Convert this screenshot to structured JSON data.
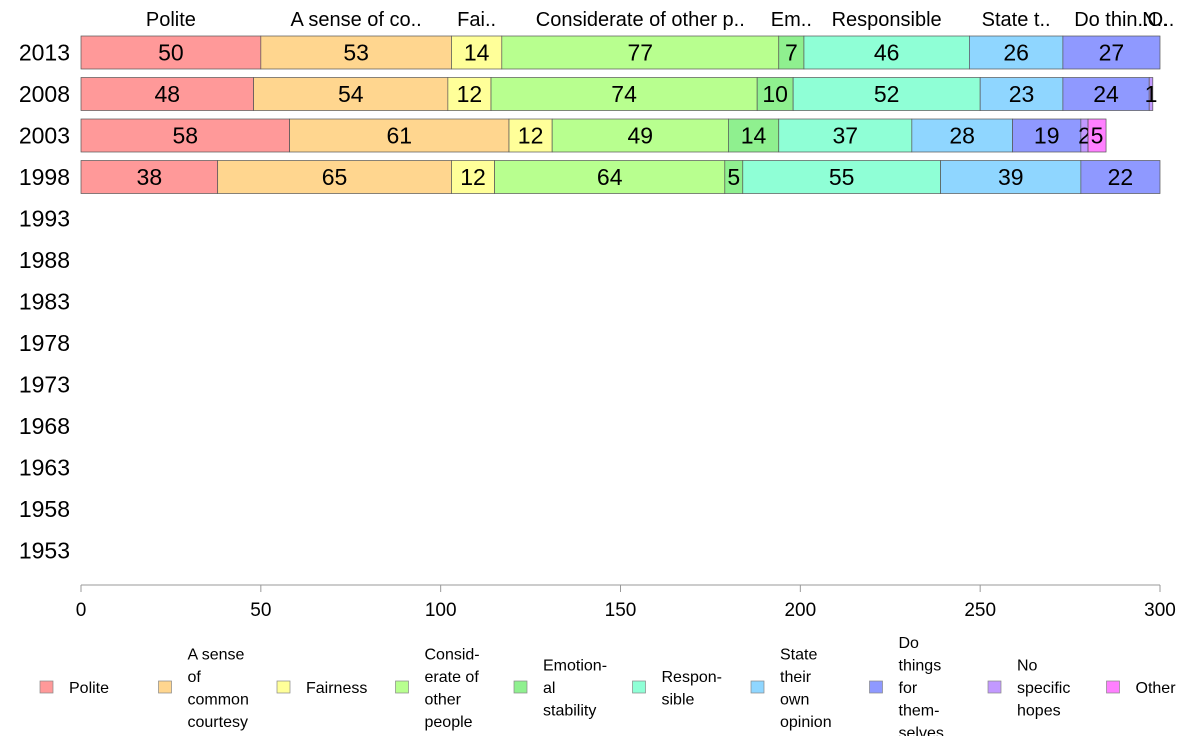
{
  "chart_data": {
    "type": "bar",
    "orientation": "horizontal",
    "stacked": true,
    "title": "",
    "xlabel": "",
    "ylabel": "",
    "xlim": [
      0,
      300
    ],
    "xticks": [
      0,
      50,
      100,
      150,
      200,
      250,
      300
    ],
    "categories": [
      "2013",
      "2008",
      "2003",
      "1998",
      "1993",
      "1988",
      "1983",
      "1978",
      "1973",
      "1968",
      "1963",
      "1958",
      "1953"
    ],
    "column_headers": [
      "Polite",
      "A sense of co..",
      "Fai..",
      "Considerate of other p..",
      "Em..",
      "Responsible",
      "State t..",
      "Do thin..",
      "N..",
      "O.."
    ],
    "legend_position": "bottom",
    "series": [
      {
        "name": "Polite",
        "legend_lines": [
          "Polite"
        ],
        "color": "#ff9999",
        "values": [
          50,
          48,
          58,
          38,
          null,
          null,
          null,
          null,
          null,
          null,
          null,
          null,
          null
        ]
      },
      {
        "name": "A sense of common courtesy",
        "legend_lines": [
          "A sense",
          "of",
          "common",
          "courtesy"
        ],
        "color": "#ffd68f",
        "values": [
          53,
          54,
          61,
          65,
          null,
          null,
          null,
          null,
          null,
          null,
          null,
          null,
          null
        ]
      },
      {
        "name": "Fairness",
        "legend_lines": [
          "Fairness"
        ],
        "color": "#ffff99",
        "values": [
          14,
          12,
          12,
          12,
          null,
          null,
          null,
          null,
          null,
          null,
          null,
          null,
          null
        ]
      },
      {
        "name": "Considerate of other people",
        "legend_lines": [
          "Consid-",
          "erate of",
          "other",
          "people"
        ],
        "color": "#b8ff8f",
        "values": [
          77,
          74,
          49,
          64,
          null,
          null,
          null,
          null,
          null,
          null,
          null,
          null,
          null
        ]
      },
      {
        "name": "Emotional stability",
        "legend_lines": [
          "Emotion-",
          "al",
          "stability"
        ],
        "color": "#8ff08f",
        "values": [
          7,
          10,
          14,
          5,
          null,
          null,
          null,
          null,
          null,
          null,
          null,
          null,
          null
        ]
      },
      {
        "name": "Responsible",
        "legend_lines": [
          "Respon-",
          "sible"
        ],
        "color": "#8fffd6",
        "values": [
          46,
          52,
          37,
          55,
          null,
          null,
          null,
          null,
          null,
          null,
          null,
          null,
          null
        ]
      },
      {
        "name": "State their own opinion",
        "legend_lines": [
          "State",
          "their",
          "own",
          "opinion"
        ],
        "color": "#8fd6ff",
        "values": [
          26,
          23,
          28,
          39,
          null,
          null,
          null,
          null,
          null,
          null,
          null,
          null,
          null
        ]
      },
      {
        "name": "Do things for themselves",
        "legend_lines": [
          "Do",
          "things",
          "for",
          "them-",
          "selves"
        ],
        "color": "#8f99ff",
        "values": [
          27,
          24,
          19,
          22,
          null,
          null,
          null,
          null,
          null,
          null,
          null,
          null,
          null
        ]
      },
      {
        "name": "No specific hopes",
        "legend_lines": [
          "No",
          "specific",
          "hopes"
        ],
        "color": "#c299ff",
        "values": [
          0,
          1,
          2,
          0,
          null,
          null,
          null,
          null,
          null,
          null,
          null,
          null,
          null
        ]
      },
      {
        "name": "Other",
        "legend_lines": [
          "Other"
        ],
        "color": "#ff80ff",
        "values": [
          0,
          0,
          5,
          0,
          null,
          null,
          null,
          null,
          null,
          null,
          null,
          null,
          null
        ]
      }
    ]
  }
}
